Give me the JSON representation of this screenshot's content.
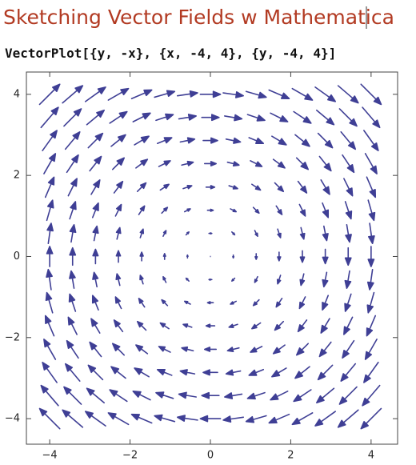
{
  "title": "Sketching Vector Fields w Mathematica",
  "input": "VectorPlot[{y, -x}, {x, -4, 4}, {y, -4, 4}]",
  "chart_data": {
    "type": "vector",
    "color": "#3f3f95",
    "x": [
      -4,
      -3.43,
      -2.86,
      -2.29,
      -1.71,
      -1.14,
      -0.57,
      0,
      0.57,
      1.14,
      1.71,
      2.29,
      2.86,
      3.43,
      4
    ],
    "y": [
      -4,
      -3.43,
      -2.86,
      -2.29,
      -1.71,
      -1.14,
      -0.57,
      0,
      0.57,
      1.14,
      1.71,
      2.29,
      2.86,
      3.43,
      4
    ],
    "xlim": [
      -4.58,
      4.66
    ],
    "ylim": [
      -4.63,
      4.55
    ],
    "xticks": [
      {
        "value": -4,
        "label": "−4"
      },
      {
        "value": -2,
        "label": "−2"
      },
      0,
      2,
      4
    ],
    "yticks": [
      {
        "value": -4,
        "label": "−4"
      },
      {
        "value": -2,
        "label": "−2"
      },
      0,
      2,
      4
    ]
  }
}
